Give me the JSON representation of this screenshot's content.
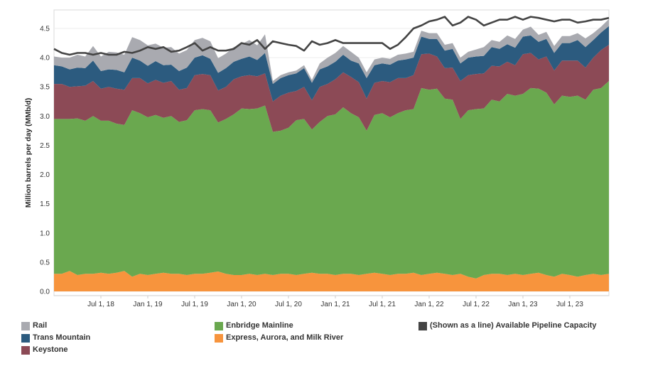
{
  "chart_data": {
    "type": "area",
    "title": "",
    "xlabel": "",
    "ylabel": "Million barrels per day (MMb/d)",
    "ylim": [
      0,
      4.9
    ],
    "yticks": [
      "0.0",
      "0.5",
      "1.0",
      "1.5",
      "2.0",
      "2.5",
      "3.0",
      "3.5",
      "4.0",
      "4.5"
    ],
    "x_start": "Jan 2018",
    "x_end": "Dec 2023",
    "xticks": [
      {
        "label": "Jul 1, 18",
        "month_index": 6
      },
      {
        "label": "Jan 1, 19",
        "month_index": 12
      },
      {
        "label": "Jul 1, 19",
        "month_index": 18
      },
      {
        "label": "Jan 1, 20",
        "month_index": 24
      },
      {
        "label": "Jul 1, 20",
        "month_index": 30
      },
      {
        "label": "Jan 1, 21",
        "month_index": 36
      },
      {
        "label": "Jul 1, 21",
        "month_index": 42
      },
      {
        "label": "Jan 1, 22",
        "month_index": 48
      },
      {
        "label": "Jul 1, 22",
        "month_index": 54
      },
      {
        "label": "Jan 1, 23",
        "month_index": 60
      },
      {
        "label": "Jul 1, 23",
        "month_index": 66
      }
    ],
    "series": [
      {
        "name": "Express, Aurora, and Milk River",
        "color": "#f7943d",
        "values": [
          0.3,
          0.3,
          0.35,
          0.28,
          0.3,
          0.3,
          0.32,
          0.3,
          0.32,
          0.35,
          0.25,
          0.3,
          0.28,
          0.3,
          0.32,
          0.3,
          0.3,
          0.28,
          0.3,
          0.3,
          0.32,
          0.34,
          0.3,
          0.28,
          0.28,
          0.3,
          0.28,
          0.3,
          0.28,
          0.3,
          0.3,
          0.28,
          0.3,
          0.32,
          0.3,
          0.3,
          0.28,
          0.3,
          0.3,
          0.28,
          0.3,
          0.32,
          0.3,
          0.28,
          0.3,
          0.3,
          0.32,
          0.28,
          0.3,
          0.32,
          0.3,
          0.28,
          0.3,
          0.25,
          0.22,
          0.28,
          0.3,
          0.3,
          0.28,
          0.3,
          0.28,
          0.3,
          0.32,
          0.28,
          0.25,
          0.3,
          0.28,
          0.25,
          0.28,
          0.3,
          0.28,
          0.3
        ]
      },
      {
        "name": "Enbridge Mainline",
        "color": "#6aa84f",
        "values": [
          2.65,
          2.65,
          2.6,
          2.68,
          2.62,
          2.7,
          2.6,
          2.62,
          2.55,
          2.5,
          2.85,
          2.75,
          2.7,
          2.72,
          2.65,
          2.7,
          2.6,
          2.65,
          2.8,
          2.82,
          2.78,
          2.55,
          2.65,
          2.75,
          2.85,
          2.82,
          2.85,
          2.88,
          2.45,
          2.45,
          2.5,
          2.65,
          2.65,
          2.45,
          2.6,
          2.7,
          2.75,
          2.85,
          2.75,
          2.7,
          2.45,
          2.7,
          2.75,
          2.7,
          2.75,
          2.8,
          2.8,
          3.2,
          3.15,
          3.15,
          3.0,
          3.0,
          2.65,
          2.85,
          2.9,
          2.85,
          2.98,
          2.95,
          3.1,
          3.05,
          3.1,
          3.18,
          3.15,
          3.12,
          2.95,
          3.05,
          3.05,
          3.1,
          3.0,
          3.15,
          3.2,
          3.3
        ]
      },
      {
        "name": "Keystone",
        "color": "#8c4a56",
        "values": [
          0.6,
          0.6,
          0.55,
          0.55,
          0.6,
          0.6,
          0.55,
          0.58,
          0.6,
          0.6,
          0.55,
          0.6,
          0.58,
          0.6,
          0.6,
          0.6,
          0.55,
          0.55,
          0.6,
          0.6,
          0.6,
          0.55,
          0.55,
          0.6,
          0.55,
          0.58,
          0.55,
          0.55,
          0.52,
          0.6,
          0.6,
          0.5,
          0.55,
          0.5,
          0.6,
          0.55,
          0.6,
          0.6,
          0.62,
          0.6,
          0.55,
          0.55,
          0.55,
          0.6,
          0.6,
          0.55,
          0.58,
          0.58,
          0.62,
          0.55,
          0.52,
          0.55,
          0.65,
          0.6,
          0.6,
          0.6,
          0.58,
          0.6,
          0.55,
          0.52,
          0.68,
          0.6,
          0.5,
          0.62,
          0.58,
          0.6,
          0.62,
          0.6,
          0.55,
          0.55,
          0.65,
          0.62
        ]
      },
      {
        "name": "Trans Mountain",
        "color": "#2c5b7f",
        "values": [
          0.32,
          0.3,
          0.3,
          0.32,
          0.3,
          0.35,
          0.3,
          0.3,
          0.32,
          0.3,
          0.35,
          0.3,
          0.3,
          0.32,
          0.3,
          0.28,
          0.32,
          0.35,
          0.3,
          0.32,
          0.28,
          0.3,
          0.32,
          0.3,
          0.3,
          0.32,
          0.28,
          0.35,
          0.3,
          0.3,
          0.3,
          0.3,
          0.32,
          0.3,
          0.3,
          0.3,
          0.3,
          0.3,
          0.28,
          0.32,
          0.35,
          0.3,
          0.3,
          0.3,
          0.3,
          0.32,
          0.3,
          0.3,
          0.25,
          0.3,
          0.3,
          0.32,
          0.3,
          0.3,
          0.3,
          0.3,
          0.32,
          0.3,
          0.3,
          0.3,
          0.3,
          0.3,
          0.3,
          0.3,
          0.3,
          0.3,
          0.3,
          0.35,
          0.35,
          0.3,
          0.3,
          0.32
        ]
      },
      {
        "name": "Rail",
        "color": "#a9aab0",
        "values": [
          0.15,
          0.15,
          0.2,
          0.22,
          0.2,
          0.25,
          0.25,
          0.3,
          0.3,
          0.3,
          0.35,
          0.35,
          0.35,
          0.3,
          0.3,
          0.3,
          0.3,
          0.3,
          0.3,
          0.3,
          0.3,
          0.25,
          0.25,
          0.25,
          0.25,
          0.28,
          0.25,
          0.32,
          0.05,
          0.05,
          0.05,
          0.05,
          0.05,
          0.05,
          0.1,
          0.15,
          0.15,
          0.15,
          0.15,
          0.1,
          0.1,
          0.1,
          0.1,
          0.1,
          0.1,
          0.1,
          0.1,
          0.1,
          0.1,
          0.1,
          0.1,
          0.1,
          0.1,
          0.1,
          0.12,
          0.15,
          0.12,
          0.12,
          0.15,
          0.15,
          0.12,
          0.15,
          0.12,
          0.12,
          0.12,
          0.12,
          0.12,
          0.12,
          0.15,
          0.12,
          0.1,
          0.12
        ]
      },
      {
        "name": "(Shown as a line) Available Pipeline Capacity",
        "color": "#444444",
        "as_line": true,
        "values": [
          4.15,
          4.08,
          4.05,
          4.08,
          4.08,
          4.05,
          4.08,
          4.05,
          4.05,
          4.1,
          4.08,
          4.12,
          4.18,
          4.15,
          4.18,
          4.1,
          4.12,
          4.18,
          4.25,
          4.12,
          4.18,
          4.12,
          4.12,
          4.15,
          4.25,
          4.22,
          4.3,
          4.15,
          4.28,
          4.25,
          4.22,
          4.2,
          4.12,
          4.28,
          4.22,
          4.25,
          4.3,
          4.25,
          4.25,
          4.25,
          4.25,
          4.25,
          4.25,
          4.15,
          4.22,
          4.35,
          4.5,
          4.55,
          4.62,
          4.65,
          4.7,
          4.55,
          4.6,
          4.7,
          4.65,
          4.55,
          4.6,
          4.65,
          4.65,
          4.7,
          4.65,
          4.7,
          4.68,
          4.65,
          4.62,
          4.65,
          4.65,
          4.6,
          4.62,
          4.65,
          4.65,
          4.68
        ]
      }
    ],
    "legend": [
      {
        "name": "Rail",
        "color": "#a9aab0"
      },
      {
        "name": "Trans Mountain",
        "color": "#2c5b7f"
      },
      {
        "name": "Keystone",
        "color": "#8c4a56"
      },
      {
        "name": "Enbridge Mainline",
        "color": "#6aa84f"
      },
      {
        "name": "Express, Aurora, and Milk River",
        "color": "#f7943d"
      },
      {
        "name": "(Shown as a line) Available Pipeline Capacity",
        "color": "#444444"
      }
    ]
  }
}
